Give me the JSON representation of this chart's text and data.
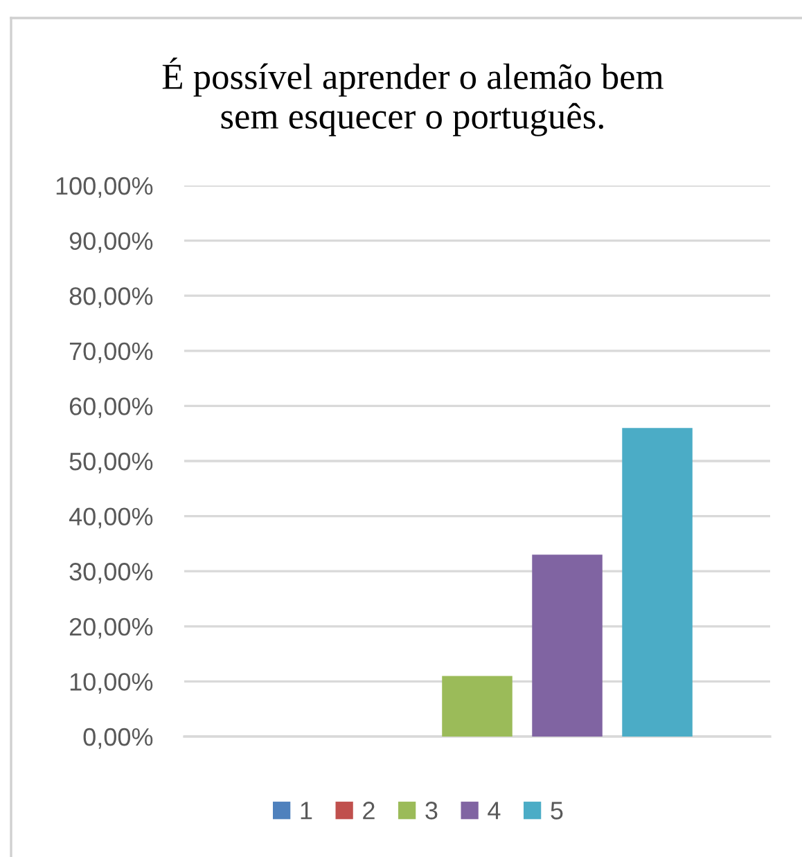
{
  "chart_data": {
    "type": "bar",
    "title": "É possível aprender o alemão bem\nsem esquecer o português.",
    "categories": [
      null
    ],
    "series": [
      {
        "name": "1",
        "color": "#4f81bd",
        "values": [
          0
        ]
      },
      {
        "name": "2",
        "color": "#c0504d",
        "values": [
          0
        ]
      },
      {
        "name": "3",
        "color": "#9bbb59",
        "values": [
          11
        ]
      },
      {
        "name": "4",
        "color": "#8064a2",
        "values": [
          33
        ]
      },
      {
        "name": "5",
        "color": "#4bacc6",
        "values": [
          56
        ]
      }
    ],
    "ylim": [
      0,
      100
    ],
    "yticks": [
      {
        "value": 0,
        "label": "0,00%"
      },
      {
        "value": 10,
        "label": "10,00%"
      },
      {
        "value": 20,
        "label": "20,00%"
      },
      {
        "value": 30,
        "label": "30,00%"
      },
      {
        "value": 40,
        "label": "40,00%"
      },
      {
        "value": 50,
        "label": "50,00%"
      },
      {
        "value": 60,
        "label": "60,00%"
      },
      {
        "value": 70,
        "label": "70,00%"
      },
      {
        "value": 80,
        "label": "80,00%"
      },
      {
        "value": 90,
        "label": "90,00%"
      },
      {
        "value": 100,
        "label": "100,00%"
      }
    ],
    "grid": "y",
    "legend": "bottom"
  }
}
